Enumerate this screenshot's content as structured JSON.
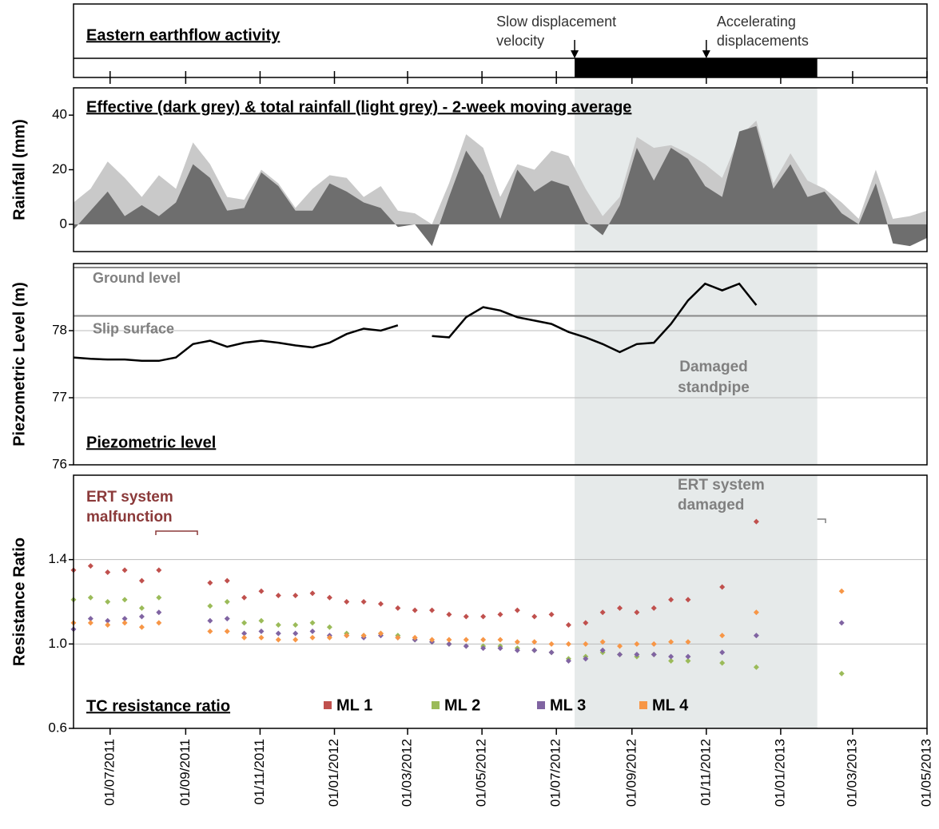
{
  "chart_data": [
    {
      "type": "timeline",
      "title": "Eastern earthflow activity",
      "active_period": [
        "2012-07-16",
        "2013-01-31"
      ],
      "color": "#000000",
      "annotations": [
        {
          "text": [
            "Slow displacement",
            "velocity"
          ],
          "x": "2012-07-16"
        },
        {
          "text": [
            "Accelerating",
            "displacements"
          ],
          "x": "2012-11-01"
        }
      ]
    },
    {
      "type": "area",
      "title": "Effective (dark grey) & total rainfall (light grey) - 2-week moving average",
      "y_label": "Rainfall (mm)",
      "x": [
        "2011-06-01",
        "2011-06-15",
        "2011-06-29",
        "2011-07-13",
        "2011-07-27",
        "2011-08-10",
        "2011-08-24",
        "2011-09-07",
        "2011-09-21",
        "2011-10-05",
        "2011-10-19",
        "2011-11-02",
        "2011-11-16",
        "2011-11-30",
        "2011-12-14",
        "2011-12-28",
        "2012-01-11",
        "2012-01-25",
        "2012-02-08",
        "2012-02-22",
        "2012-03-07",
        "2012-03-21",
        "2012-04-04",
        "2012-04-18",
        "2012-05-02",
        "2012-05-16",
        "2012-05-30",
        "2012-06-13",
        "2012-06-27",
        "2012-07-11",
        "2012-07-25",
        "2012-08-08",
        "2012-08-22",
        "2012-09-05",
        "2012-09-19",
        "2012-10-03",
        "2012-10-17",
        "2012-10-31",
        "2012-11-14",
        "2012-11-28",
        "2012-12-12",
        "2012-12-26",
        "2013-01-09",
        "2013-01-23",
        "2013-02-06",
        "2013-02-20",
        "2013-03-06",
        "2013-03-20",
        "2013-04-03",
        "2013-04-17",
        "2013-05-01"
      ],
      "series": [
        {
          "color": "#c9c9c9",
          "values": [
            8,
            13,
            23,
            17,
            10,
            18,
            13,
            30,
            22,
            10,
            9,
            20,
            15,
            6,
            13,
            18,
            17,
            10,
            14,
            5,
            4,
            0,
            15,
            33,
            28,
            10,
            22,
            20,
            27,
            25,
            13,
            3,
            10,
            32,
            28,
            29,
            26,
            22,
            17,
            32,
            38,
            15,
            26,
            16,
            13,
            8,
            2,
            20,
            2,
            3,
            5
          ]
        },
        {
          "color": "#6e6e6e",
          "values": [
            -2,
            5,
            12,
            3,
            7,
            3,
            8,
            22,
            17,
            5,
            6,
            19,
            14,
            5,
            5,
            15,
            12,
            8,
            6,
            -1,
            0,
            -8,
            10,
            27,
            18,
            2,
            20,
            12,
            16,
            14,
            1,
            -4,
            7,
            28,
            16,
            28,
            24,
            14,
            10,
            34,
            36,
            13,
            22,
            10,
            12,
            4,
            0,
            15,
            -7,
            -8,
            -5
          ]
        }
      ],
      "ylim": [
        -10,
        50
      ],
      "yticks": [
        0,
        20,
        40
      ]
    },
    {
      "type": "line",
      "title": "Piezometric level",
      "y_label": "Piezometric Level (m)",
      "x": [
        "2011-06-01",
        "2011-06-15",
        "2011-06-29",
        "2011-07-13",
        "2011-07-27",
        "2011-08-10",
        "2011-08-24",
        "2011-09-07",
        "2011-09-21",
        "2011-10-05",
        "2011-10-19",
        "2011-11-02",
        "2011-11-16",
        "2011-11-30",
        "2011-12-14",
        "2011-12-28",
        "2012-01-11",
        "2012-01-25",
        "2012-02-08",
        "2012-02-22",
        "2012-03-07",
        "2012-03-21",
        "2012-04-04",
        "2012-04-18",
        "2012-05-02",
        "2012-05-16",
        "2012-05-30",
        "2012-06-13",
        "2012-06-27",
        "2012-07-11",
        "2012-07-25",
        "2012-08-08",
        "2012-08-22",
        "2012-09-05",
        "2012-09-19",
        "2012-10-03",
        "2012-10-17",
        "2012-10-31",
        "2012-11-14",
        "2012-11-28",
        "2012-12-12",
        "2012-12-26",
        "2013-01-09",
        "2013-01-23",
        "2013-02-06",
        "2013-02-20",
        "2013-03-06",
        "2013-03-20",
        "2013-04-03",
        "2013-04-17",
        "2013-05-01"
      ],
      "series": [
        {
          "color": "#000000",
          "values": [
            77.6,
            77.58,
            77.57,
            77.57,
            77.55,
            77.55,
            77.6,
            77.8,
            77.85,
            77.76,
            77.82,
            77.85,
            77.82,
            77.78,
            77.75,
            77.82,
            77.95,
            78.03,
            78.0,
            78.08,
            null,
            77.92,
            77.9,
            78.2,
            78.35,
            78.3,
            78.2,
            78.15,
            78.1,
            77.98,
            77.9,
            77.8,
            77.68,
            77.8,
            77.82,
            78.1,
            78.45,
            78.7,
            78.6,
            78.7,
            78.38,
            null,
            null,
            null,
            null,
            null,
            null,
            null,
            null,
            null,
            null
          ]
        }
      ],
      "reference_lines": [
        {
          "label": "Ground level",
          "value": 78.94
        },
        {
          "label": "Slip surface",
          "value": 78.22
        }
      ],
      "annotations": [
        {
          "text": [
            "Damaged",
            "standpipe"
          ]
        }
      ],
      "ylim": [
        76,
        79
      ],
      "yticks": [
        76,
        77,
        78
      ],
      "grid": true
    },
    {
      "type": "scatter",
      "title": "TC resistance ratio",
      "y_label": "Resistance Ratio",
      "x": [
        "2011-06-01",
        "2011-06-15",
        "2011-06-29",
        "2011-07-13",
        "2011-07-27",
        "2011-08-10",
        "2011-08-24",
        "2011-09-07",
        "2011-09-21",
        "2011-10-05",
        "2011-10-19",
        "2011-11-02",
        "2011-11-16",
        "2011-11-30",
        "2011-12-14",
        "2011-12-28",
        "2012-01-11",
        "2012-01-25",
        "2012-02-08",
        "2012-02-22",
        "2012-03-07",
        "2012-03-21",
        "2012-04-04",
        "2012-04-18",
        "2012-05-02",
        "2012-05-16",
        "2012-05-30",
        "2012-06-13",
        "2012-06-27",
        "2012-07-11",
        "2012-07-25",
        "2012-08-08",
        "2012-08-22",
        "2012-09-05",
        "2012-09-19",
        "2012-10-03",
        "2012-10-17",
        "2012-10-31",
        "2012-11-14",
        "2012-11-28",
        "2012-12-12",
        "2012-12-26",
        "2013-01-09",
        "2013-01-23",
        "2013-02-06",
        "2013-02-20",
        "2013-03-06",
        "2013-03-20",
        "2013-04-03",
        "2013-04-17",
        "2013-05-01"
      ],
      "series": [
        {
          "name": "ML 1",
          "color": "#c0504d",
          "values": [
            1.35,
            1.37,
            1.34,
            1.35,
            1.3,
            1.35,
            null,
            null,
            1.29,
            1.3,
            1.22,
            1.25,
            1.23,
            1.23,
            1.24,
            1.22,
            1.2,
            1.2,
            1.19,
            1.17,
            1.16,
            1.16,
            1.14,
            1.13,
            1.13,
            1.14,
            1.16,
            1.13,
            1.14,
            1.09,
            1.1,
            1.15,
            1.17,
            1.15,
            1.17,
            1.21,
            1.21,
            null,
            1.27,
            null,
            1.58,
            null,
            null,
            null,
            null,
            null,
            null,
            null,
            null,
            null,
            null
          ]
        },
        {
          "name": "ML 2",
          "color": "#9bbb59",
          "values": [
            1.21,
            1.22,
            1.2,
            1.21,
            1.17,
            1.22,
            null,
            null,
            1.18,
            1.2,
            1.1,
            1.11,
            1.09,
            1.09,
            1.1,
            1.08,
            1.05,
            1.04,
            1.05,
            1.04,
            1.02,
            1.01,
            1.0,
            0.99,
            0.99,
            0.99,
            0.98,
            0.97,
            0.96,
            0.93,
            0.94,
            0.96,
            0.95,
            0.94,
            0.95,
            0.92,
            0.92,
            null,
            0.91,
            null,
            0.89,
            null,
            null,
            null,
            null,
            0.86,
            null,
            null,
            null,
            null,
            null
          ]
        },
        {
          "name": "ML 3",
          "color": "#8064a2",
          "values": [
            1.07,
            1.12,
            1.11,
            1.12,
            1.13,
            1.15,
            null,
            null,
            1.11,
            1.12,
            1.05,
            1.06,
            1.05,
            1.05,
            1.06,
            1.04,
            1.04,
            1.03,
            1.04,
            1.03,
            1.02,
            1.01,
            1.0,
            0.99,
            0.98,
            0.98,
            0.97,
            0.97,
            0.96,
            0.92,
            0.93,
            0.97,
            0.95,
            0.95,
            0.95,
            0.94,
            0.94,
            null,
            0.96,
            null,
            1.04,
            null,
            null,
            null,
            null,
            1.1,
            null,
            null,
            null,
            null,
            null
          ]
        },
        {
          "name": "ML 4",
          "color": "#f79646",
          "values": [
            1.1,
            1.1,
            1.09,
            1.1,
            1.08,
            1.1,
            null,
            null,
            1.06,
            1.06,
            1.03,
            1.03,
            1.02,
            1.02,
            1.03,
            1.03,
            1.04,
            1.04,
            1.05,
            1.03,
            1.03,
            1.02,
            1.02,
            1.02,
            1.02,
            1.02,
            1.01,
            1.01,
            1.0,
            1.0,
            1.0,
            1.01,
            0.99,
            1.0,
            1.0,
            1.01,
            1.01,
            null,
            1.04,
            null,
            1.15,
            null,
            null,
            null,
            null,
            1.25,
            null,
            null,
            null,
            null,
            null
          ]
        }
      ],
      "annotations": [
        {
          "text": [
            "ERT system",
            "malfunction"
          ],
          "color": "#8b3a3a"
        },
        {
          "text": [
            "ERT system",
            "damaged"
          ],
          "color": "#808080"
        }
      ],
      "xlim": [
        "2011-06-01",
        "2013-05-01"
      ],
      "xticks": [
        {
          "value": "2011-07-01",
          "label": "01/07/2011"
        },
        {
          "value": "2011-09-01",
          "label": "01/09/2011"
        },
        {
          "value": "2011-11-01",
          "label": "01/11/2011"
        },
        {
          "value": "2012-01-01",
          "label": "01/01/2012"
        },
        {
          "value": "2012-03-01",
          "label": "01/03/2012"
        },
        {
          "value": "2012-05-01",
          "label": "01/05/2012"
        },
        {
          "value": "2012-07-01",
          "label": "01/07/2012"
        },
        {
          "value": "2012-09-01",
          "label": "01/09/2012"
        },
        {
          "value": "2012-11-01",
          "label": "01/11/2012"
        },
        {
          "value": "2013-01-01",
          "label": "01/01/2013"
        },
        {
          "value": "2013-03-01",
          "label": "01/03/2013"
        },
        {
          "value": "2013-05-01",
          "label": "01/05/2013"
        }
      ],
      "ylim": [
        0.6,
        1.8
      ],
      "yticks": [
        0.6,
        {
          "value": 1,
          "label": "1.0"
        },
        1.4
      ],
      "grid": true
    }
  ]
}
